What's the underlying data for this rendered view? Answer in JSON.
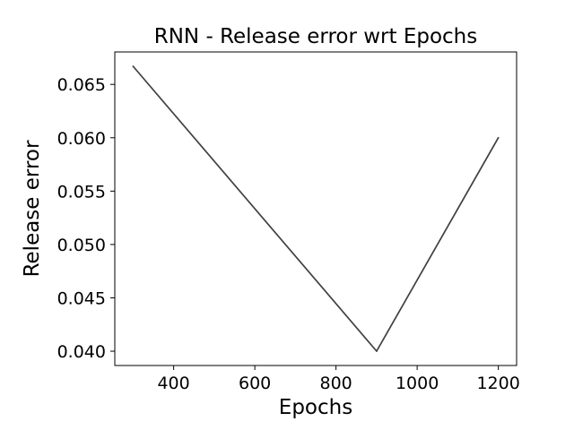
{
  "chart_data": {
    "type": "line",
    "title": "RNN - Release error wrt Epochs",
    "xlabel": "Epochs",
    "ylabel": "Release error",
    "x": [
      300,
      900,
      1200
    ],
    "series": [
      {
        "values": [
          0.0667,
          0.04,
          0.06
        ]
      }
    ],
    "xlim": [
      255,
      1245
    ],
    "ylim": [
      0.03866,
      0.06804
    ],
    "xticks": [
      400,
      600,
      800,
      1000,
      1200
    ],
    "xtick_labels": [
      "400",
      "600",
      "800",
      "1000",
      "1200"
    ],
    "yticks": [
      0.04,
      0.045,
      0.05,
      0.055,
      0.06,
      0.065
    ],
    "ytick_labels": [
      "0.040",
      "0.045",
      "0.050",
      "0.055",
      "0.060",
      "0.065"
    ],
    "grid": false,
    "line_color": "#404040"
  }
}
